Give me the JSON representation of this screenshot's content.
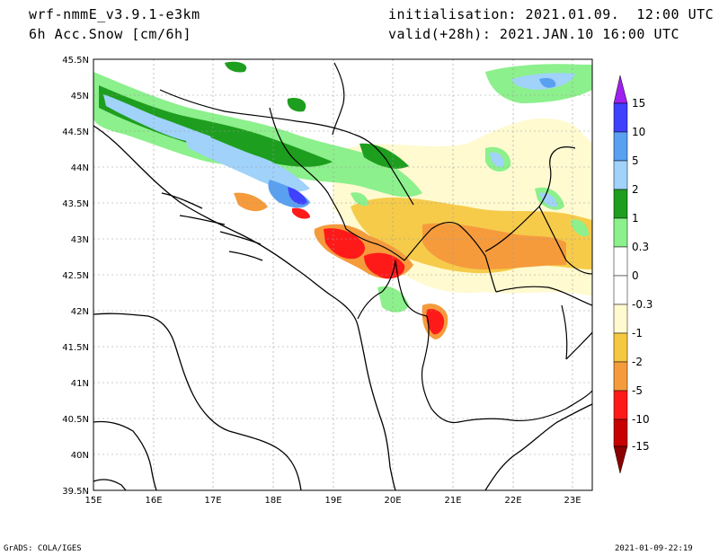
{
  "header": {
    "model": "wrf-nmmE_v3.9.1-e3km",
    "field": "6h Acc.Snow [cm/6h]",
    "init": "initialisation: 2021.01.09.  12:00 UTC",
    "valid": "valid(+28h): 2021.JAN.10 16:00 UTC"
  },
  "axes": {
    "lat_labels": [
      "45.5N",
      "45N",
      "44.5N",
      "44N",
      "43.5N",
      "43N",
      "42.5N",
      "42N",
      "41.5N",
      "41N",
      "40.5N",
      "40N",
      "39.5N"
    ],
    "lon_labels": [
      "15E",
      "16E",
      "17E",
      "18E",
      "19E",
      "20E",
      "21E",
      "22E",
      "23E"
    ],
    "lat_range": [
      39.5,
      45.5
    ],
    "lon_range": [
      15,
      23.3
    ]
  },
  "colorbar": {
    "labels": [
      "15",
      "10",
      "5",
      "2",
      "1",
      "0.3",
      "0",
      "-0.3",
      "-1",
      "-2",
      "-5",
      "-10",
      "-15"
    ],
    "colors": [
      "#4040ff",
      "#5aa0f0",
      "#a0d2fa",
      "#1e9e1e",
      "#8cf08c",
      "#ffffff",
      "#fffad0",
      "#f5c842",
      "#f59b3c",
      "#ff1a1a",
      "#c80000",
      "#a00000"
    ],
    "top_arrow_color": "#a020f0",
    "bottom_arrow_color": "#8b0000"
  },
  "footer": {
    "left": "GrADS: COLA/IGES",
    "right": "2021-01-09-22:19"
  }
}
